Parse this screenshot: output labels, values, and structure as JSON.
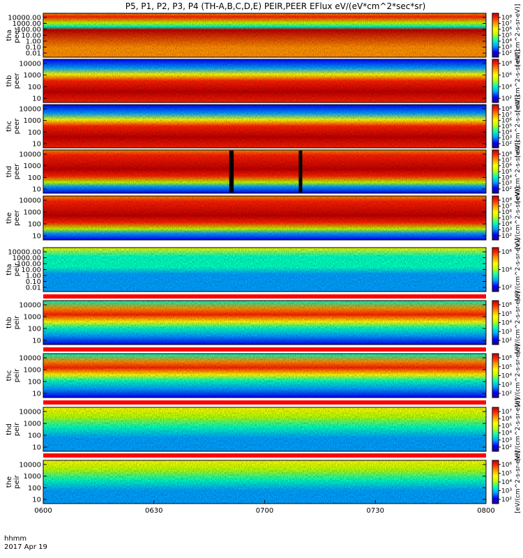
{
  "title": "P5, P1, P2, P3, P4 (TH-A,B,C,D,E) PEIR,PEER EFlux eV/(eV*cm^2*sec*sr)",
  "colorbar_unit": "[eV/(cm^2-s-sr-eV)]",
  "colors": {
    "scale": [
      "#200090",
      "#0000ff",
      "#00a0ff",
      "#00ffc0",
      "#c0ff00",
      "#ffff00",
      "#ff9000",
      "#ff2000",
      "#c00000"
    ],
    "gap": "#000000",
    "nodata_bar": "#ff0000"
  },
  "chart_data": {
    "type": "heatmap",
    "date": "2017 Apr 19",
    "time_label": "hhmm",
    "x_ticks": [
      "0600",
      "0630",
      "0700",
      "0730",
      "0800"
    ],
    "xlim": [
      "0600",
      "0800"
    ],
    "scale": "log",
    "panels": [
      {
        "probe": "tha",
        "species": "peer",
        "ylabel": [
          "tha",
          "peer"
        ],
        "y_ticks": [
          "10000.00",
          "1000.00",
          "100.00",
          "10.00",
          "1.00",
          "0.10",
          "0.01"
        ],
        "colorbar_ticks": [
          "10^8",
          "10^7",
          "10^6",
          "10^5",
          "10^4",
          "10^3",
          "10^2"
        ]
      },
      {
        "probe": "thb",
        "species": "peer",
        "ylabel": [
          "thb",
          "peer"
        ],
        "y_ticks": [
          "10000",
          "1000",
          "100",
          "10"
        ],
        "colorbar_ticks": [
          "10^8",
          "10^6",
          "10^4",
          "10^2"
        ]
      },
      {
        "probe": "thc",
        "species": "peer",
        "ylabel": [
          "thc",
          "peer"
        ],
        "y_ticks": [
          "10000",
          "1000",
          "100",
          "10"
        ],
        "colorbar_ticks": [
          "10^8",
          "10^7",
          "10^6",
          "10^5",
          "10^4",
          "10^3",
          "10^2"
        ]
      },
      {
        "probe": "thd",
        "species": "peer",
        "ylabel": [
          "thd",
          "peer"
        ],
        "y_ticks": [
          "10000",
          "1000",
          "100",
          "10"
        ],
        "colorbar_ticks": [
          "10^8",
          "10^7",
          "10^6",
          "10^5",
          "10^4",
          "10^3",
          "10^2"
        ]
      },
      {
        "probe": "the",
        "species": "peer",
        "ylabel": [
          "the",
          "peer"
        ],
        "y_ticks": [
          "10000",
          "1000",
          "100",
          "10"
        ],
        "colorbar_ticks": [
          "10^8",
          "10^7",
          "10^6",
          "10^5",
          "10^4",
          "10^3",
          "10^2"
        ]
      },
      {
        "probe": "tha",
        "species": "peir",
        "ylabel": [
          "tha",
          "peir"
        ],
        "y_ticks": [
          "10000.00",
          "1000.00",
          "100.00",
          "10.00",
          "1.00",
          "0.10",
          "0.01"
        ],
        "colorbar_ticks": [
          "10^6",
          "10^4",
          "10^2"
        ]
      },
      {
        "probe": "thb",
        "species": "peir",
        "ylabel": [
          "thb",
          "peir"
        ],
        "y_ticks": [
          "10000",
          "1000",
          "100",
          "10"
        ],
        "colorbar_ticks": [
          "10^6",
          "10^5",
          "10^4",
          "10^3",
          "10^2"
        ]
      },
      {
        "probe": "thc",
        "species": "peir",
        "ylabel": [
          "thc",
          "peir"
        ],
        "y_ticks": [
          "10000",
          "1000",
          "100",
          "10"
        ],
        "colorbar_ticks": [
          "10^6",
          "10^5",
          "10^4",
          "10^3",
          "10^2"
        ]
      },
      {
        "probe": "thd",
        "species": "peir",
        "ylabel": [
          "thd",
          "peir"
        ],
        "y_ticks": [
          "10000",
          "1000",
          "100",
          "10"
        ],
        "colorbar_ticks": [
          "10^7",
          "10^6",
          "10^5",
          "10^4",
          "10^3",
          "10^2"
        ]
      },
      {
        "probe": "the",
        "species": "peir",
        "ylabel": [
          "the",
          "peir"
        ],
        "y_ticks": [
          "10000",
          "1000",
          "100",
          "10"
        ],
        "colorbar_ticks": [
          "10^6",
          "10^5",
          "10^4",
          "10^3",
          "10^2"
        ]
      }
    ]
  }
}
